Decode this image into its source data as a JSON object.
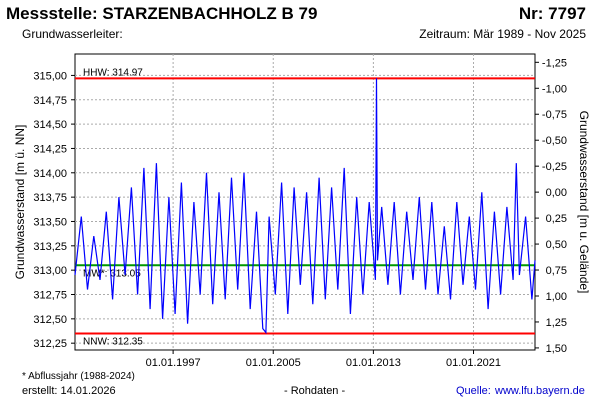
{
  "header": {
    "title": "Messstelle: STARZENBACHHOLZ B 79",
    "number": "Nr: 7797",
    "aquifer": "Grundwasserleiter:",
    "period": "Zeitraum: Mär 1989 - Nov 2025"
  },
  "footer": {
    "footnote": "* Abflussjahr (1988-2024)",
    "created": "erstellt:  14.01.2026",
    "rawdata": "- Rohdaten -",
    "source_label": "Quelle:",
    "source_url": "www.lfu.bayern.de"
  },
  "chart_data": {
    "type": "line",
    "title": "",
    "xlabel": "",
    "ylabel": "Grundwasserstand [m ü. NN]",
    "y2label": "Grundwasserstand [m u. Gelände]",
    "xlim": [
      "1989-03-01",
      "2025-11-30"
    ],
    "ylim": [
      312.18,
      315.22
    ],
    "y2lim": [
      1.52,
      -1.33
    ],
    "x_ticks": [
      "01.01.1997",
      "01.01.2005",
      "01.01.2013",
      "01.01.2021"
    ],
    "y_ticks": [
      "312,25",
      "312,50",
      "312,75",
      "313,00",
      "313,25",
      "313,50",
      "313,75",
      "314,00",
      "314,25",
      "314,50",
      "314,75",
      "315,00"
    ],
    "y_tick_values": [
      312.25,
      312.5,
      312.75,
      313.0,
      313.25,
      313.5,
      313.75,
      314.0,
      314.25,
      314.5,
      314.75,
      315.0
    ],
    "y2_ticks": [
      "1,50",
      "1,25",
      "1,00",
      "0,75",
      "0,50",
      "0,25",
      "0,00",
      "-0,25",
      "-0,50",
      "-0,75",
      "-1,00",
      "-1,25"
    ],
    "y2_tick_values": [
      1.5,
      1.25,
      1.0,
      0.75,
      0.5,
      0.25,
      0.0,
      -0.25,
      -0.5,
      -0.75,
      -1.0,
      -1.25
    ],
    "grid": true,
    "reference_lines": [
      {
        "label": "HHW: 314.97",
        "value": 314.97,
        "color": "#ff0000"
      },
      {
        "label": "NNW: 312.35",
        "value": 312.35,
        "color": "#ff0000"
      },
      {
        "label": "MW*: 313.05",
        "value": 313.05,
        "color": "#009900"
      }
    ],
    "series": [
      {
        "color": "#0000ff",
        "points": [
          [
            "1989-03-01",
            312.95
          ],
          [
            "1989-09-01",
            313.55
          ],
          [
            "1990-03-01",
            312.8
          ],
          [
            "1990-09-01",
            313.35
          ],
          [
            "1991-03-01",
            312.9
          ],
          [
            "1991-09-01",
            313.6
          ],
          [
            "1992-03-01",
            312.7
          ],
          [
            "1992-09-01",
            313.75
          ],
          [
            "1993-03-01",
            312.95
          ],
          [
            "1993-09-01",
            313.85
          ],
          [
            "1994-03-01",
            312.75
          ],
          [
            "1994-09-01",
            314.05
          ],
          [
            "1995-03-01",
            312.6
          ],
          [
            "1995-09-01",
            314.1
          ],
          [
            "1996-03-01",
            312.5
          ],
          [
            "1996-09-01",
            313.75
          ],
          [
            "1997-03-01",
            312.55
          ],
          [
            "1997-09-01",
            313.9
          ],
          [
            "1998-03-01",
            312.45
          ],
          [
            "1998-09-01",
            313.7
          ],
          [
            "1999-03-01",
            312.75
          ],
          [
            "1999-09-01",
            314.0
          ],
          [
            "2000-03-01",
            312.65
          ],
          [
            "2000-09-01",
            313.8
          ],
          [
            "2001-03-01",
            312.7
          ],
          [
            "2001-09-01",
            313.95
          ],
          [
            "2002-03-01",
            312.8
          ],
          [
            "2002-09-01",
            314.0
          ],
          [
            "2003-03-01",
            312.6
          ],
          [
            "2003-09-01",
            313.6
          ],
          [
            "2004-03-01",
            312.4
          ],
          [
            "2004-06-01",
            312.36
          ],
          [
            "2004-09-01",
            313.55
          ],
          [
            "2005-03-01",
            312.75
          ],
          [
            "2005-09-01",
            313.9
          ],
          [
            "2006-03-01",
            312.55
          ],
          [
            "2006-09-01",
            313.85
          ],
          [
            "2007-03-01",
            312.85
          ],
          [
            "2007-09-01",
            313.8
          ],
          [
            "2008-03-01",
            312.65
          ],
          [
            "2008-09-01",
            313.95
          ],
          [
            "2009-03-01",
            312.7
          ],
          [
            "2009-09-01",
            313.85
          ],
          [
            "2010-03-01",
            312.8
          ],
          [
            "2010-09-01",
            314.05
          ],
          [
            "2011-03-01",
            312.55
          ],
          [
            "2011-09-01",
            313.75
          ],
          [
            "2012-03-01",
            312.75
          ],
          [
            "2012-09-01",
            313.7
          ],
          [
            "2013-03-01",
            312.9
          ],
          [
            "2013-04-01",
            314.97
          ],
          [
            "2013-05-01",
            313.1
          ],
          [
            "2013-09-01",
            313.65
          ],
          [
            "2014-03-01",
            312.85
          ],
          [
            "2014-09-01",
            313.7
          ],
          [
            "2015-03-01",
            312.75
          ],
          [
            "2015-09-01",
            313.6
          ],
          [
            "2016-03-01",
            312.9
          ],
          [
            "2016-09-01",
            313.75
          ],
          [
            "2017-03-01",
            312.8
          ],
          [
            "2017-09-01",
            313.7
          ],
          [
            "2018-03-01",
            312.75
          ],
          [
            "2018-09-01",
            313.45
          ],
          [
            "2019-03-01",
            312.7
          ],
          [
            "2019-09-01",
            313.7
          ],
          [
            "2020-03-01",
            312.85
          ],
          [
            "2020-09-01",
            313.55
          ],
          [
            "2021-03-01",
            312.8
          ],
          [
            "2021-09-01",
            313.8
          ],
          [
            "2022-03-01",
            312.6
          ],
          [
            "2022-09-01",
            313.6
          ],
          [
            "2023-03-01",
            312.75
          ],
          [
            "2023-09-01",
            313.65
          ],
          [
            "2024-03-01",
            312.9
          ],
          [
            "2024-06-01",
            314.1
          ],
          [
            "2024-09-01",
            312.95
          ],
          [
            "2025-03-01",
            313.55
          ],
          [
            "2025-09-01",
            312.7
          ],
          [
            "2025-11-30",
            313.1
          ]
        ]
      }
    ]
  }
}
